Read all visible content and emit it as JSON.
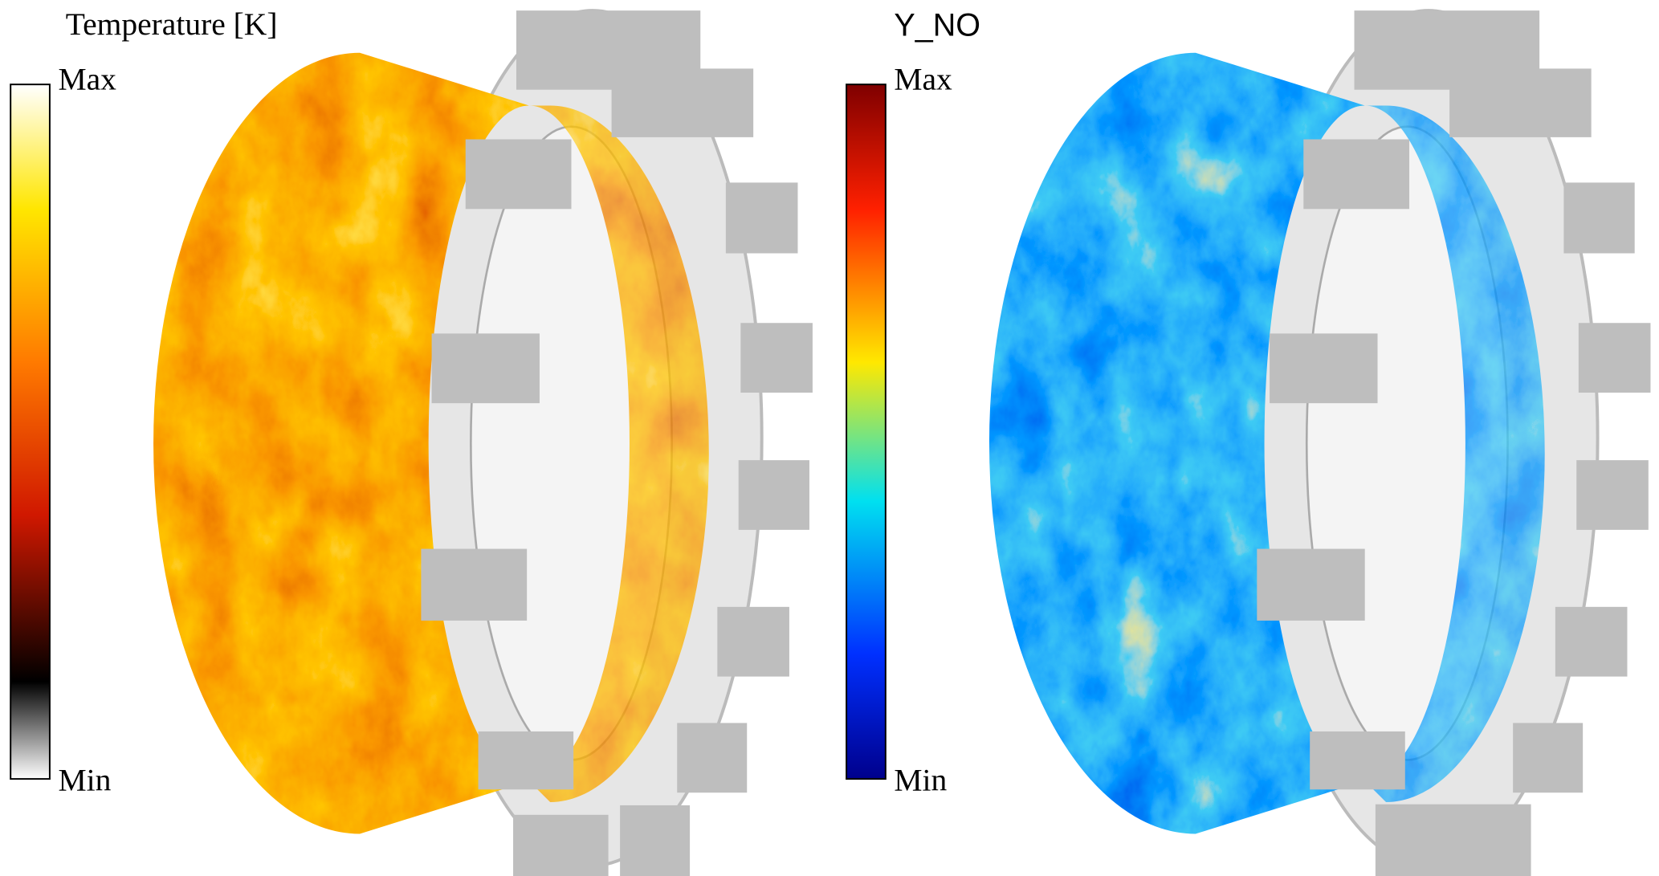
{
  "panels": [
    {
      "title": "Temperature [K]",
      "colorbar": {
        "max_label": "Max",
        "min_label": "Min"
      }
    },
    {
      "title": "Y_NO",
      "colorbar": {
        "max_label": "Max",
        "min_label": "Min"
      }
    }
  ]
}
